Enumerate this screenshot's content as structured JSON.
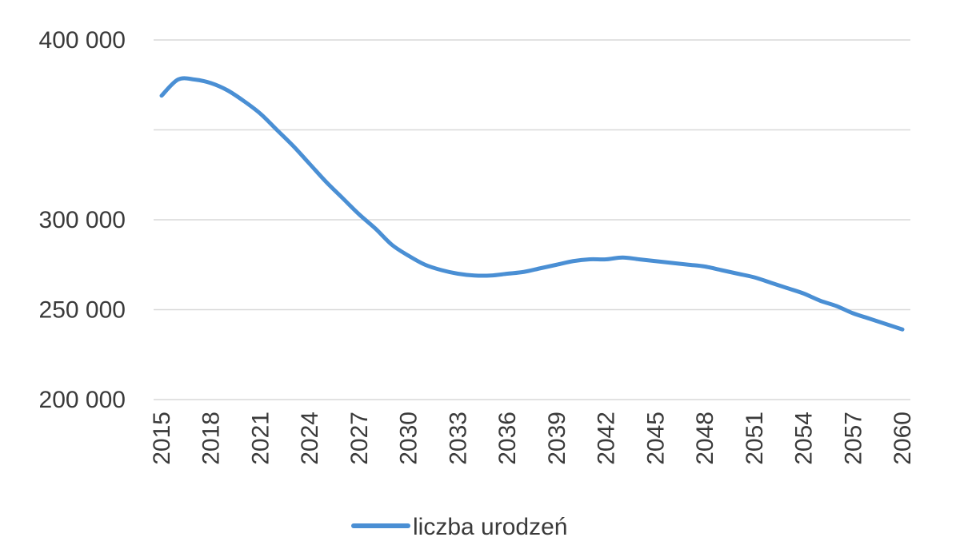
{
  "chart_data": {
    "type": "line",
    "title": "",
    "xlabel": "",
    "ylabel": "",
    "x": [
      2015,
      2016,
      2017,
      2018,
      2019,
      2020,
      2021,
      2022,
      2023,
      2024,
      2025,
      2026,
      2027,
      2028,
      2029,
      2030,
      2031,
      2032,
      2033,
      2034,
      2035,
      2036,
      2037,
      2038,
      2039,
      2040,
      2041,
      2042,
      2043,
      2044,
      2045,
      2046,
      2047,
      2048,
      2049,
      2050,
      2051,
      2052,
      2053,
      2054,
      2055,
      2056,
      2057,
      2058,
      2059,
      2060
    ],
    "series": [
      {
        "name": "liczba urodzeń",
        "color": "#4a8fd4",
        "values": [
          369000,
          378000,
          378000,
          376000,
          372000,
          366000,
          359000,
          350000,
          341000,
          331000,
          321000,
          312000,
          303000,
          295000,
          286000,
          280000,
          275000,
          272000,
          270000,
          269000,
          269000,
          270000,
          271000,
          273000,
          275000,
          277000,
          278000,
          278000,
          279000,
          278000,
          277000,
          276000,
          275000,
          274000,
          272000,
          270000,
          268000,
          265000,
          262000,
          259000,
          255000,
          252000,
          248000,
          245000,
          242000,
          239000
        ]
      }
    ],
    "ylim": [
      200000,
      400000
    ],
    "y_ticks": [
      {
        "value": 400000,
        "label": "400 000"
      },
      {
        "value": 350000,
        "label": ""
      },
      {
        "value": 300000,
        "label": "300 000"
      },
      {
        "value": 250000,
        "label": "250 000"
      },
      {
        "value": 200000,
        "label": "200 000"
      }
    ],
    "x_tick_labels": [
      "2015",
      "2018",
      "2021",
      "2024",
      "2027",
      "2030",
      "2033",
      "2036",
      "2039",
      "2042",
      "2045",
      "2048",
      "2051",
      "2054",
      "2057",
      "2060"
    ],
    "grid": true,
    "legend_position": "bottom"
  }
}
